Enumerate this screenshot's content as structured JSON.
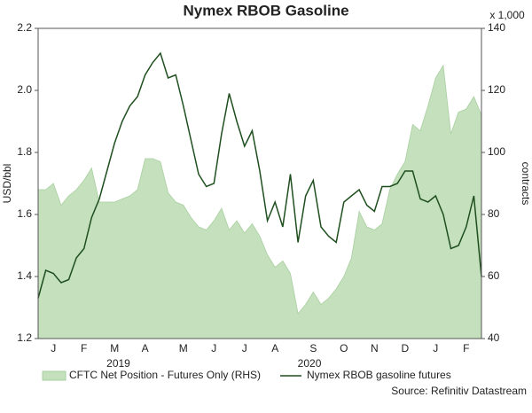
{
  "chart_data": {
    "type": "combo",
    "title": "Nymex RBOB Gasoline",
    "y_label": "USD/bbl",
    "y2_label": "contracts",
    "y2_unit": "x 1,000",
    "source": "Source: Refinitiv Datastream",
    "categories": [
      null,
      null,
      "J",
      null,
      null,
      null,
      "F",
      null,
      null,
      null,
      "M",
      null,
      null,
      null,
      "A",
      null,
      null,
      null,
      null,
      "M",
      null,
      null,
      null,
      "J",
      null,
      null,
      null,
      "J",
      null,
      null,
      null,
      "A",
      null,
      null,
      null,
      null,
      "S",
      null,
      null,
      null,
      "O",
      null,
      null,
      null,
      "N",
      null,
      null,
      null,
      "D",
      null,
      null,
      null,
      "J",
      null,
      null,
      null,
      "F",
      null,
      null
    ],
    "year_labels": [
      "2019",
      "2020"
    ],
    "ylim": [
      1.2,
      2.2
    ],
    "yticks": [
      1.2,
      1.4,
      1.6,
      1.8,
      {
        "value": 2,
        "label": "2.0"
      },
      2.2
    ],
    "y2lim": [
      40,
      140
    ],
    "y2ticks": [
      40,
      60,
      80,
      100,
      120,
      140
    ],
    "series": [
      {
        "name": "CFTC Net Position - Futures Only (RHS)",
        "type": "area",
        "axis": "y2",
        "color": "#c4e0bd",
        "values": [
          88,
          88,
          90,
          83,
          86,
          88,
          91,
          95,
          84,
          84,
          84,
          85,
          86,
          88,
          98,
          98,
          97,
          87,
          84,
          83,
          79,
          76,
          75,
          78,
          82,
          75,
          78,
          74,
          77,
          73,
          67,
          63,
          65,
          61,
          48,
          51,
          55,
          51,
          53,
          56,
          60,
          66,
          81,
          76,
          75,
          77,
          88,
          93,
          97,
          109,
          107,
          115,
          124,
          128,
          106,
          113,
          114,
          118,
          112
        ]
      },
      {
        "name": "Nymex RBOB gasoline futures",
        "type": "line",
        "color": "#1f4f1f",
        "values": [
          1.33,
          1.42,
          1.41,
          1.38,
          1.39,
          1.46,
          1.49,
          1.59,
          1.65,
          1.74,
          1.83,
          1.9,
          1.95,
          1.98,
          2.05,
          2.09,
          2.12,
          2.04,
          2.05,
          1.95,
          1.84,
          1.73,
          1.69,
          1.7,
          1.86,
          1.99,
          1.9,
          1.82,
          1.87,
          1.74,
          1.58,
          1.64,
          1.56,
          1.73,
          1.51,
          1.66,
          1.71,
          1.56,
          1.53,
          1.51,
          1.64,
          1.66,
          1.68,
          1.63,
          1.61,
          1.69,
          1.69,
          1.7,
          1.74,
          1.74,
          1.65,
          1.64,
          1.66,
          1.6,
          1.49,
          1.5,
          1.56,
          1.66,
          1.4
        ]
      }
    ]
  }
}
